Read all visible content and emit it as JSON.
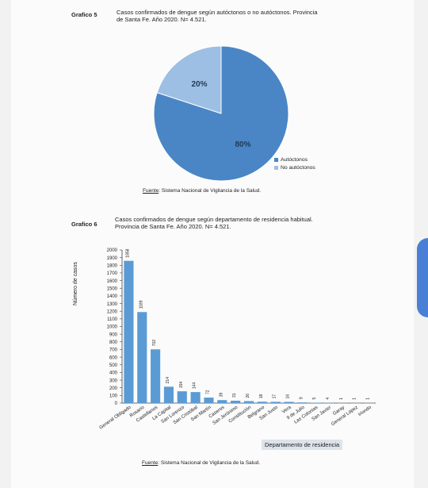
{
  "figure5": {
    "label": "Grafico 5",
    "title_line1": "Casos confirmados de dengue según autóctonos o no autóctonos. Provincia",
    "title_line2": "de Santa Fe. Año 2020. N= 4.521.",
    "source_prefix": "Fuente",
    "source_text": ": Sistema Nacional de Vigilancia de la Salud."
  },
  "figure6": {
    "label": "Grafico 6",
    "title_line1": "Casos confirmados de dengue según departamento de residencia habitual.",
    "title_line2": "Provincia de Santa Fe. Año 2020. N= 4.521.",
    "source_prefix": "Fuente",
    "source_text": ": Sistema Nacional de Vigilancia de la Salud."
  },
  "colors": {
    "pie_main": "#4a86c5",
    "pie_secondary": "#9dbfe3",
    "bar": "#5b9bd5"
  },
  "chart_data": [
    {
      "type": "pie",
      "slices": [
        {
          "name": "Autóctonos",
          "value": 80,
          "label": "80%"
        },
        {
          "name": "No autóctonos",
          "value": 20,
          "label": "20%"
        }
      ],
      "legend_position": "bottom-right"
    },
    {
      "type": "bar",
      "ylabel": "Número de casos",
      "xlabel": "Departamento de residencia",
      "ylim": [
        0,
        2000
      ],
      "yticks": [
        "0",
        "100",
        "200",
        "300",
        "400",
        "500",
        "600",
        "700",
        "800",
        "900",
        "1000",
        "1100",
        "1200",
        "1300",
        "1400",
        "1500",
        "1600",
        "1700",
        "1800",
        "1900",
        "2000"
      ],
      "categories": [
        "General Obligado",
        "Rosario",
        "Castellanos",
        "La Capital",
        "San Lorenzo",
        "San Cristóbal",
        "San Martín",
        "Caseros",
        "San Jerónimo",
        "Constitución",
        "Belgrano",
        "San Justo",
        "Vera",
        "9 de Julio",
        "Las Colonias",
        "San Javier",
        "Garay",
        "General López",
        "Iriondo"
      ],
      "values": [
        1858,
        1189,
        702,
        214,
        154,
        144,
        72,
        39,
        31,
        26,
        18,
        17,
        16,
        9,
        5,
        4,
        1,
        1,
        1
      ],
      "grid": false
    }
  ]
}
